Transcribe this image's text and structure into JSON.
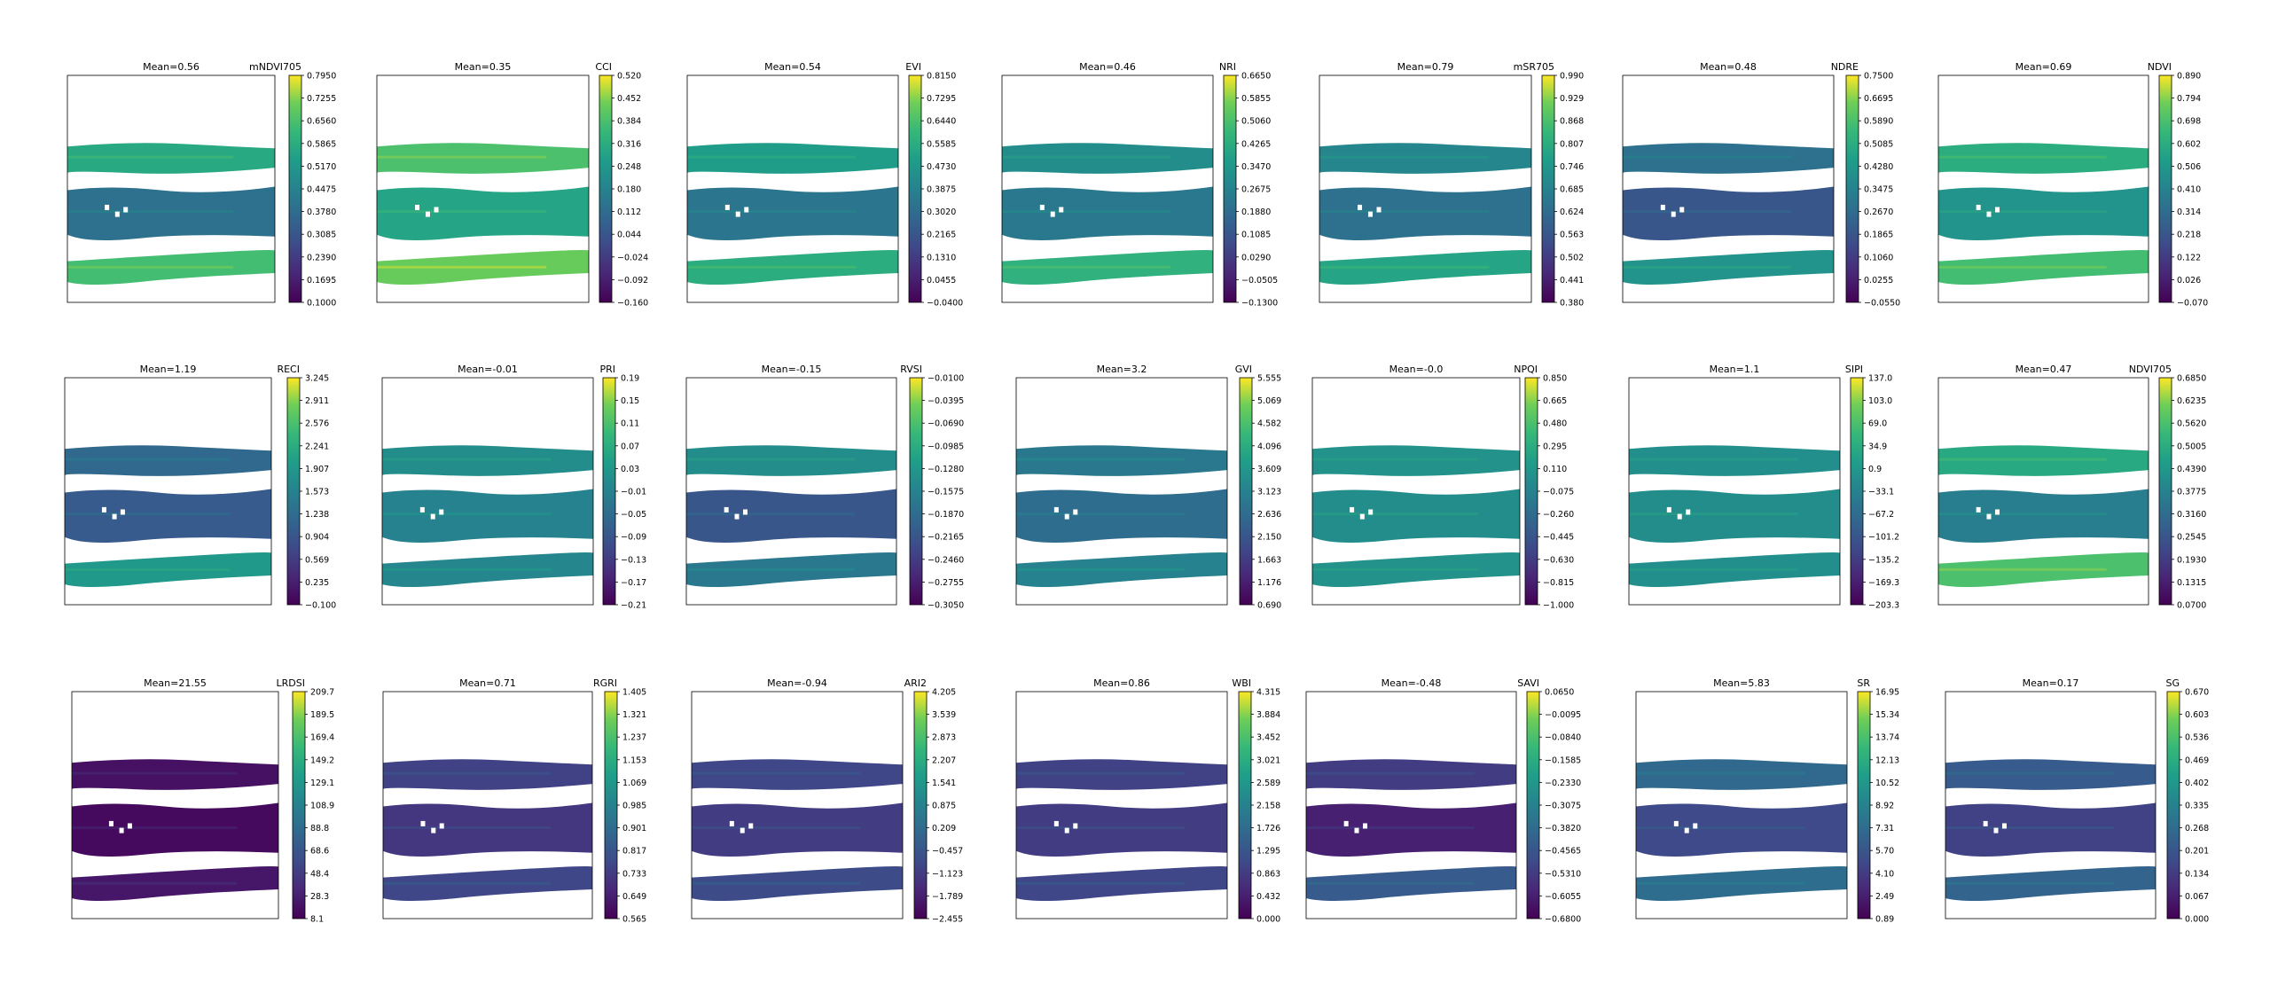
{
  "figure": {
    "rows": 3,
    "cols": 7,
    "colormap": "viridis"
  },
  "chart_data": [
    {
      "type": "heatmap",
      "title": "Mean=0.56",
      "colorbar_label": "mNDVI705",
      "vmin": 0.1,
      "vmax": 0.795,
      "ticks": [
        "0.7950",
        "0.7255",
        "0.6560",
        "0.5865",
        "0.5170",
        "0.4475",
        "0.3780",
        "0.3085",
        "0.2390",
        "0.1695",
        "0.1000"
      ]
    },
    {
      "type": "heatmap",
      "title": "Mean=0.35",
      "colorbar_label": "CCI",
      "vmin": -0.16,
      "vmax": 0.52,
      "ticks": [
        "0.520",
        "0.452",
        "0.384",
        "0.316",
        "0.248",
        "0.180",
        "0.112",
        "0.044",
        "−0.024",
        "−0.092",
        "−0.160"
      ]
    },
    {
      "type": "heatmap",
      "title": "Mean=0.54",
      "colorbar_label": "EVI",
      "vmin": -0.04,
      "vmax": 0.815,
      "ticks": [
        "0.8150",
        "0.7295",
        "0.6440",
        "0.5585",
        "0.4730",
        "0.3875",
        "0.3020",
        "0.2165",
        "0.1310",
        "0.0455",
        "−0.0400"
      ]
    },
    {
      "type": "heatmap",
      "title": "Mean=0.46",
      "colorbar_label": "NRI",
      "vmin": -0.13,
      "vmax": 0.665,
      "ticks": [
        "0.6650",
        "0.5855",
        "0.5060",
        "0.4265",
        "0.3470",
        "0.2675",
        "0.1880",
        "0.1085",
        "0.0290",
        "−0.0505",
        "−0.1300"
      ]
    },
    {
      "type": "heatmap",
      "title": "Mean=0.79",
      "colorbar_label": "mSR705",
      "vmin": 0.38,
      "vmax": 0.99,
      "ticks": [
        "0.990",
        "0.929",
        "0.868",
        "0.807",
        "0.746",
        "0.685",
        "0.624",
        "0.563",
        "0.502",
        "0.441",
        "0.380"
      ]
    },
    {
      "type": "heatmap",
      "title": "Mean=0.48",
      "colorbar_label": "NDRE",
      "vmin": -0.055,
      "vmax": 0.75,
      "ticks": [
        "0.7500",
        "0.6695",
        "0.5890",
        "0.5085",
        "0.4280",
        "0.3475",
        "0.2670",
        "0.1865",
        "0.1060",
        "0.0255",
        "−0.0550"
      ]
    },
    {
      "type": "heatmap",
      "title": "Mean=0.69",
      "colorbar_label": "NDVI",
      "vmin": -0.07,
      "vmax": 0.89,
      "ticks": [
        "0.890",
        "0.794",
        "0.698",
        "0.602",
        "0.506",
        "0.410",
        "0.314",
        "0.218",
        "0.122",
        "0.026",
        "−0.070"
      ]
    },
    {
      "type": "heatmap",
      "title": "Mean=1.19",
      "colorbar_label": "RECI",
      "vmin": -0.1,
      "vmax": 3.245,
      "ticks": [
        "3.245",
        "2.911",
        "2.576",
        "2.241",
        "1.907",
        "1.573",
        "1.238",
        "0.904",
        "0.569",
        "0.235",
        "−0.100"
      ]
    },
    {
      "type": "heatmap",
      "title": "Mean=-0.01",
      "colorbar_label": "PRI",
      "vmin": -0.21,
      "vmax": 0.19,
      "ticks": [
        "0.19",
        "0.15",
        "0.11",
        "0.07",
        "0.03",
        "−0.01",
        "−0.05",
        "−0.09",
        "−0.13",
        "−0.17",
        "−0.21"
      ]
    },
    {
      "type": "heatmap",
      "title": "Mean=-0.15",
      "colorbar_label": "RVSI",
      "vmin": -0.305,
      "vmax": -0.01,
      "ticks": [
        "−0.0100",
        "−0.0395",
        "−0.0690",
        "−0.0985",
        "−0.1280",
        "−0.1575",
        "−0.1870",
        "−0.2165",
        "−0.2460",
        "−0.2755",
        "−0.3050"
      ]
    },
    {
      "type": "heatmap",
      "title": "Mean=3.2",
      "colorbar_label": "GVI",
      "vmin": 0.69,
      "vmax": 5.555,
      "ticks": [
        "5.555",
        "5.069",
        "4.582",
        "4.096",
        "3.609",
        "3.123",
        "2.636",
        "2.150",
        "1.663",
        "1.176",
        "0.690"
      ]
    },
    {
      "type": "heatmap",
      "title": "Mean=-0.0",
      "colorbar_label": "NPQI",
      "vmin": -1.0,
      "vmax": 0.85,
      "ticks": [
        "0.850",
        "0.665",
        "0.480",
        "0.295",
        "0.110",
        "−0.075",
        "−0.260",
        "−0.445",
        "−0.630",
        "−0.815",
        "−1.000"
      ]
    },
    {
      "type": "heatmap",
      "title": "Mean=1.1",
      "colorbar_label": "SIPI",
      "vmin": -203.3,
      "vmax": 137.0,
      "ticks": [
        "137.0",
        "103.0",
        "69.0",
        "34.9",
        "0.9",
        "−33.1",
        "−67.2",
        "−101.2",
        "−135.2",
        "−169.3",
        "−203.3"
      ]
    },
    {
      "type": "heatmap",
      "title": "Mean=0.47",
      "colorbar_label": "NDVI705",
      "vmin": 0.07,
      "vmax": 0.685,
      "ticks": [
        "0.6850",
        "0.6235",
        "0.5620",
        "0.5005",
        "0.4390",
        "0.3775",
        "0.3160",
        "0.2545",
        "0.1930",
        "0.1315",
        "0.0700"
      ]
    },
    {
      "type": "heatmap",
      "title": "Mean=21.55",
      "colorbar_label": "LRDSI",
      "vmin": 8.1,
      "vmax": 209.7,
      "ticks": [
        "209.7",
        "189.5",
        "169.4",
        "149.2",
        "129.1",
        "108.9",
        "88.8",
        "68.6",
        "48.4",
        "28.3",
        "8.1"
      ]
    },
    {
      "type": "heatmap",
      "title": "Mean=0.71",
      "colorbar_label": "RGRI",
      "vmin": 0.565,
      "vmax": 1.405,
      "ticks": [
        "1.405",
        "1.321",
        "1.237",
        "1.153",
        "1.069",
        "0.985",
        "0.901",
        "0.817",
        "0.733",
        "0.649",
        "0.565"
      ]
    },
    {
      "type": "heatmap",
      "title": "Mean=-0.94",
      "colorbar_label": "ARI2",
      "vmin": -2.455,
      "vmax": 4.205,
      "ticks": [
        "4.205",
        "3.539",
        "2.873",
        "2.207",
        "1.541",
        "0.875",
        "0.209",
        "−0.457",
        "−1.123",
        "−1.789",
        "−2.455"
      ]
    },
    {
      "type": "heatmap",
      "title": "Mean=0.86",
      "colorbar_label": "WBI",
      "vmin": 0.0,
      "vmax": 4.315,
      "ticks": [
        "4.315",
        "3.884",
        "3.452",
        "3.021",
        "2.589",
        "2.158",
        "1.726",
        "1.295",
        "0.863",
        "0.432",
        "0.000"
      ]
    },
    {
      "type": "heatmap",
      "title": "Mean=-0.48",
      "colorbar_label": "SAVI",
      "vmin": -0.68,
      "vmax": 0.065,
      "ticks": [
        "0.0650",
        "−0.0095",
        "−0.0840",
        "−0.1585",
        "−0.2330",
        "−0.3075",
        "−0.3820",
        "−0.4565",
        "−0.5310",
        "−0.6055",
        "−0.6800"
      ]
    },
    {
      "type": "heatmap",
      "title": "Mean=5.83",
      "colorbar_label": "SR",
      "vmin": 0.89,
      "vmax": 16.95,
      "ticks": [
        "16.95",
        "15.34",
        "13.74",
        "12.13",
        "10.52",
        "8.92",
        "7.31",
        "5.70",
        "4.10",
        "2.49",
        "0.89"
      ]
    },
    {
      "type": "heatmap",
      "title": "Mean=0.17",
      "colorbar_label": "SG",
      "vmin": 0.0,
      "vmax": 0.67,
      "ticks": [
        "0.670",
        "0.603",
        "0.536",
        "0.469",
        "0.402",
        "0.335",
        "0.268",
        "0.201",
        "0.134",
        "0.067",
        "0.000"
      ]
    }
  ]
}
